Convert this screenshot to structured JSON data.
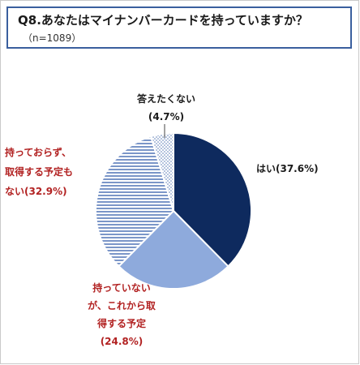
{
  "header": {
    "title": "Q8.あなたはマイナンバーカードを持っていますか？",
    "subtitle": "（n=1089）"
  },
  "colors": {
    "border": "#3a5f9e",
    "yes": "#0e2a5e",
    "plan": "#8eaadc",
    "notPlan": "#6f8dc4",
    "noAnswer": "#6f8dc4",
    "labelRed": "#b22222",
    "labelDark": "#1a1a1a"
  },
  "chart_data": {
    "type": "pie",
    "title": "Q8.あなたはマイナンバーカードを持っていますか？",
    "n": 1089,
    "slices": [
      {
        "label": "はい",
        "value": 37.6,
        "pattern": "solid-dark-navy"
      },
      {
        "label": "持っていないが、これから取得する予定",
        "value": 24.8,
        "pattern": "solid-light-blue"
      },
      {
        "label": "持っておらず、取得する予定もない",
        "value": 32.9,
        "pattern": "horizontal-stripes"
      },
      {
        "label": "答えたくない",
        "value": 4.7,
        "pattern": "dotted"
      }
    ],
    "labels": {
      "yes": [
        "はい(37.6%)"
      ],
      "plan": [
        "持っていない",
        "が、これから取",
        "得する予定",
        "(24.8%)"
      ],
      "notPlan": [
        "持っておらず、",
        "取得する予定も",
        "ない(32.9%)"
      ],
      "noAnswer": [
        "答えたくない",
        "(4.7%)"
      ]
    }
  }
}
